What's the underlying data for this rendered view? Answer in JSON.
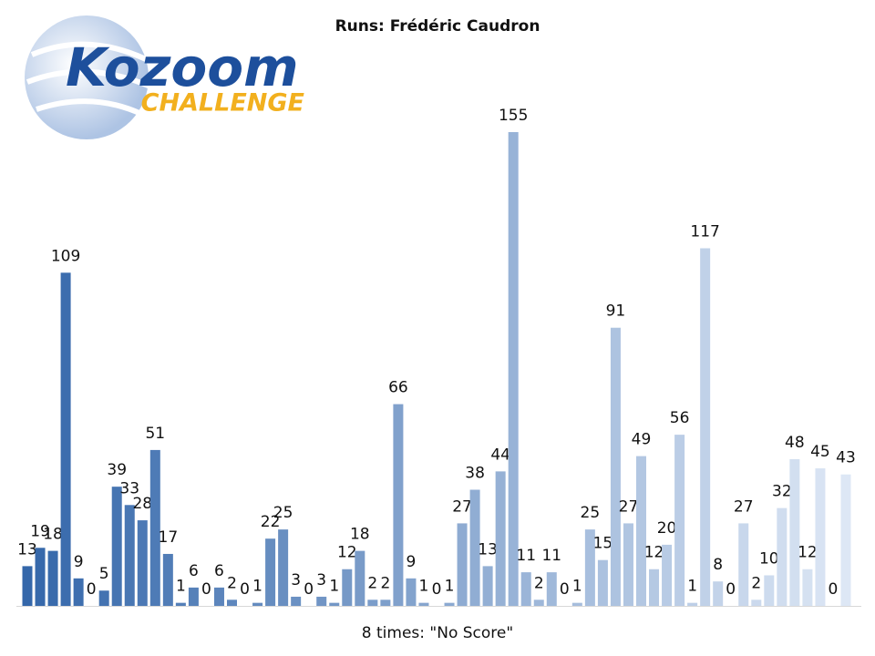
{
  "logo": {
    "name": "Kozoom",
    "subtitle": "CHALLENGE"
  },
  "chart_data": {
    "type": "bar",
    "title": "Runs: Frédéric Caudron",
    "values": [
      13,
      19,
      18,
      109,
      9,
      0,
      5,
      39,
      33,
      28,
      51,
      17,
      1,
      6,
      0,
      6,
      2,
      0,
      1,
      22,
      25,
      3,
      0,
      3,
      1,
      12,
      18,
      2,
      2,
      66,
      9,
      1,
      0,
      1,
      27,
      38,
      13,
      44,
      155,
      11,
      2,
      11,
      0,
      1,
      25,
      15,
      91,
      27,
      49,
      12,
      20,
      56,
      1,
      117,
      8,
      0,
      27,
      2,
      10,
      32,
      48,
      12,
      45,
      0,
      43
    ],
    "gradient": [
      "#3467aa",
      "#dde7f5"
    ],
    "footnote": "8 times: \"No Score\""
  }
}
